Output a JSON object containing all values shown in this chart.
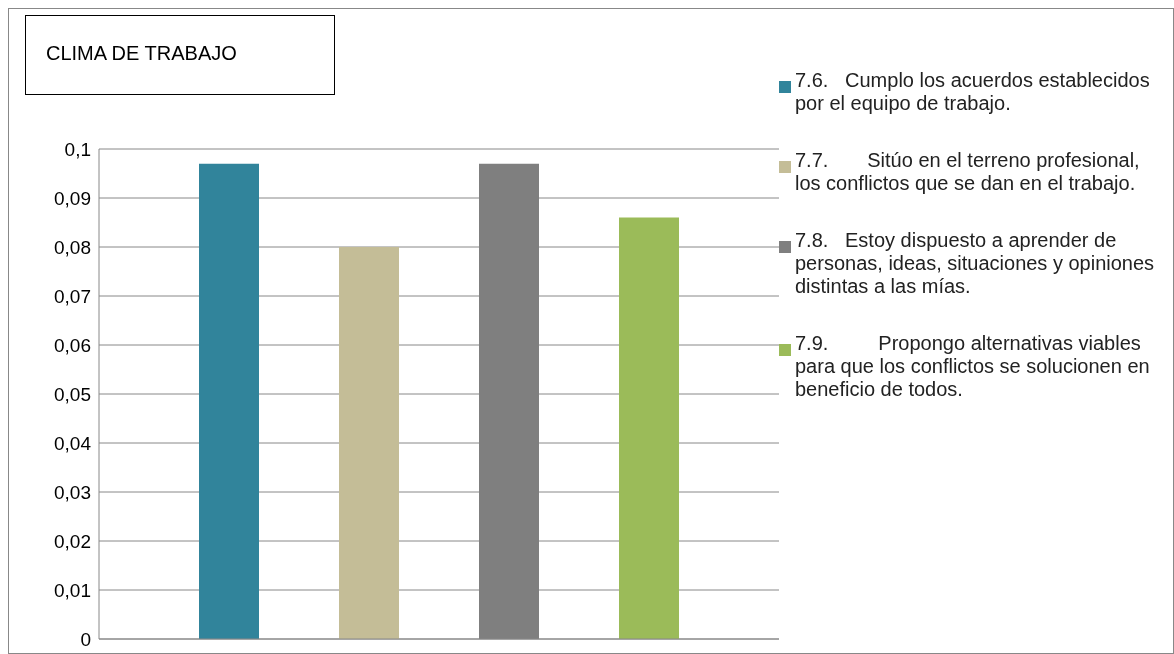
{
  "chart_data": {
    "type": "bar",
    "title": "CLIMA DE TRABAJO",
    "categories": [
      null
    ],
    "series": [
      {
        "name": "7.6.   Cumplo los acuerdos establecidos por el equipo de trabajo.",
        "color": "#31849b",
        "values": [
          0.097
        ]
      },
      {
        "name": "7.7.       Sitúo en el terreno profesional, los conflictos que se dan en el trabajo.",
        "color": "#c4bd97",
        "values": [
          0.08
        ]
      },
      {
        "name": "7.8.   Estoy dispuesto a aprender de personas, ideas, situaciones y opiniones distintas a las mías.",
        "color": "#7f7f7f",
        "values": [
          0.097
        ]
      },
      {
        "name": "7.9.         Propongo alternativas viables para que los conflictos se solucionen en beneficio de todos.",
        "color": "#9bbb59",
        "values": [
          0.086
        ]
      }
    ],
    "ylim": [
      0,
      0.1
    ],
    "yticks": [
      {
        "value": 0,
        "label": "0"
      },
      {
        "value": 0.01,
        "label": "0,01"
      },
      {
        "value": 0.02,
        "label": "0,02"
      },
      {
        "value": 0.03,
        "label": "0,03"
      },
      {
        "value": 0.04,
        "label": "0,04"
      },
      {
        "value": 0.05,
        "label": "0,05"
      },
      {
        "value": 0.06,
        "label": "0,06"
      },
      {
        "value": 0.07,
        "label": "0,07"
      },
      {
        "value": 0.08,
        "label": "0,08"
      },
      {
        "value": 0.09,
        "label": "0,09"
      },
      {
        "value": 0.1,
        "label": "0,1"
      }
    ],
    "grid": "y",
    "legend": "right"
  }
}
